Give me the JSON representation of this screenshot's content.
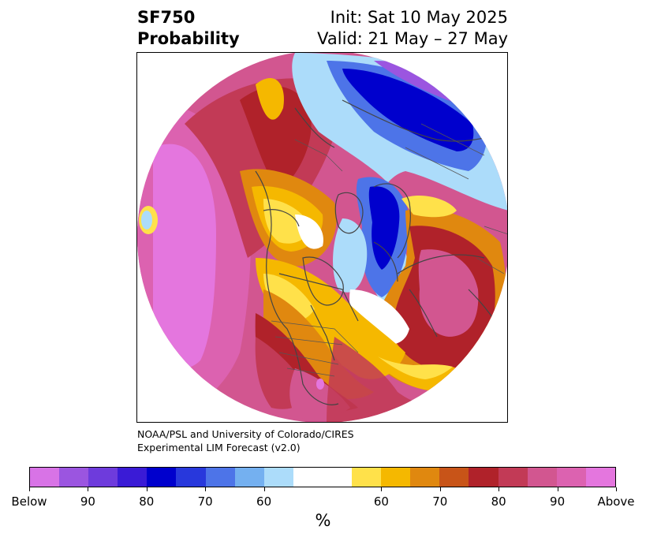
{
  "header": {
    "variable": "SF750",
    "product": "Probability",
    "init": "Init: Sat 10 May 2025",
    "valid": "Valid: 21 May – 27 May"
  },
  "credit": {
    "line1": "NOAA/PSL and University of Colorado/CIRES",
    "line2": "Experimental LIM Forecast (v2.0)"
  },
  "colorbar": {
    "unit": "%",
    "colors": [
      "#d873e6",
      "#9b55e0",
      "#6e3bdc",
      "#3a1bd6",
      "#0000cd",
      "#2838dc",
      "#4d74e8",
      "#74b0f0",
      "#acdcfa",
      "#ffffff",
      "#ffe14a",
      "#f5b800",
      "#e0880f",
      "#c85418",
      "#b0222a",
      "#c23a56",
      "#d25690",
      "#dc62b0",
      "#e476de"
    ],
    "labels": [
      "Below",
      "90",
      "80",
      "70",
      "60",
      "60",
      "70",
      "80",
      "90",
      "Above"
    ]
  },
  "map": {
    "description_colors": {
      "above_strong": "#dc62b0",
      "above_max": "#e476de",
      "above_high": "#c23a56",
      "above_mid": "#b0222a",
      "above_low": "#e0880f",
      "above_min": "#ffe14a",
      "below_min": "#acdcfa",
      "below_mid": "#4d74e8",
      "below_high": "#0000cd",
      "below_max": "#9b55e0"
    }
  }
}
